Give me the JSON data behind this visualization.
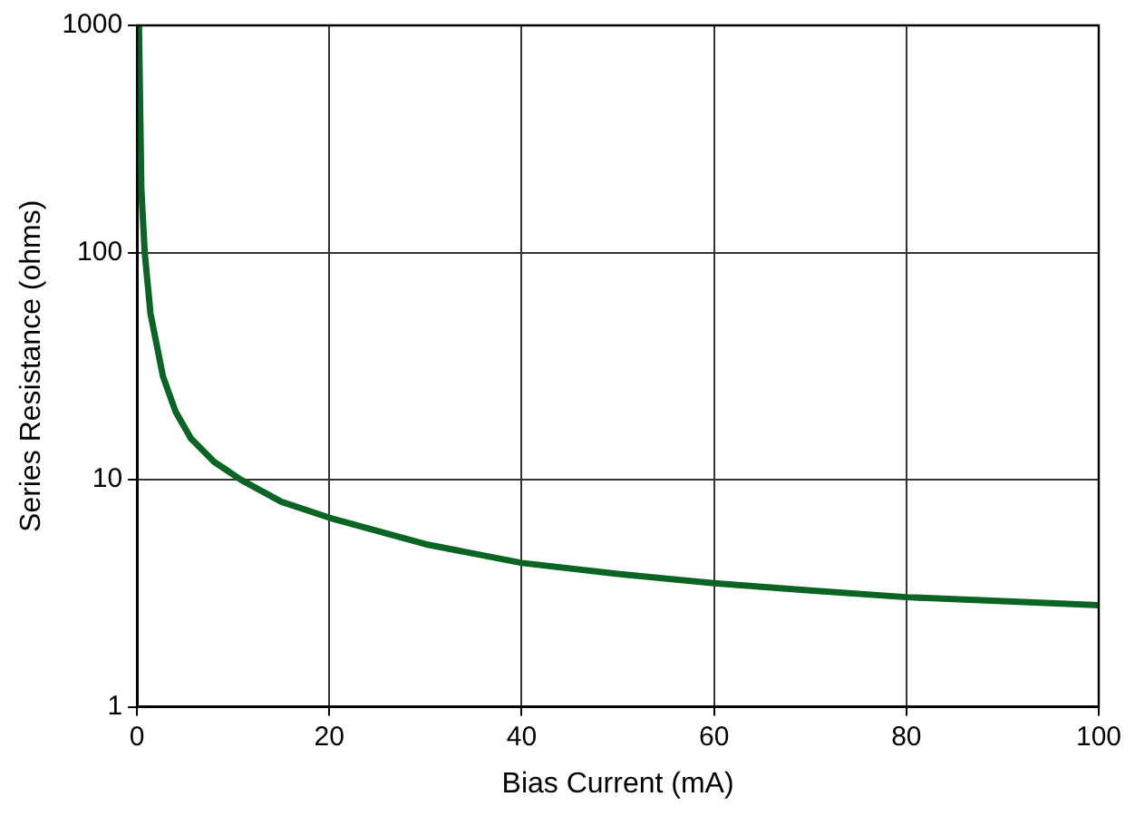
{
  "chart_data": {
    "type": "line",
    "xlabel": "Bias Current (mA)",
    "ylabel": "Series Resistance (ohms)",
    "x": [
      0.2,
      0.45,
      0.8,
      1.4,
      2.7,
      4,
      5.6,
      8,
      10.8,
      15,
      20,
      30,
      40,
      50,
      60,
      70,
      80,
      90,
      100
    ],
    "series": [
      {
        "color": "#0a6423",
        "values": [
          1000,
          190,
          100,
          54,
          28.5,
          20,
          15.2,
          12,
          10,
          8,
          6.8,
          5.2,
          4.3,
          3.85,
          3.5,
          3.25,
          3.04,
          2.92,
          2.8
        ]
      }
    ],
    "xlim": [
      0,
      100
    ],
    "xticks": [
      0,
      20,
      40,
      60,
      80,
      100
    ],
    "ylim": [
      1,
      1000
    ],
    "yticks": [
      1,
      10,
      100,
      1000
    ],
    "log": "y",
    "grid": true,
    "legend": false,
    "marker": "none",
    "line_style": "solid"
  }
}
